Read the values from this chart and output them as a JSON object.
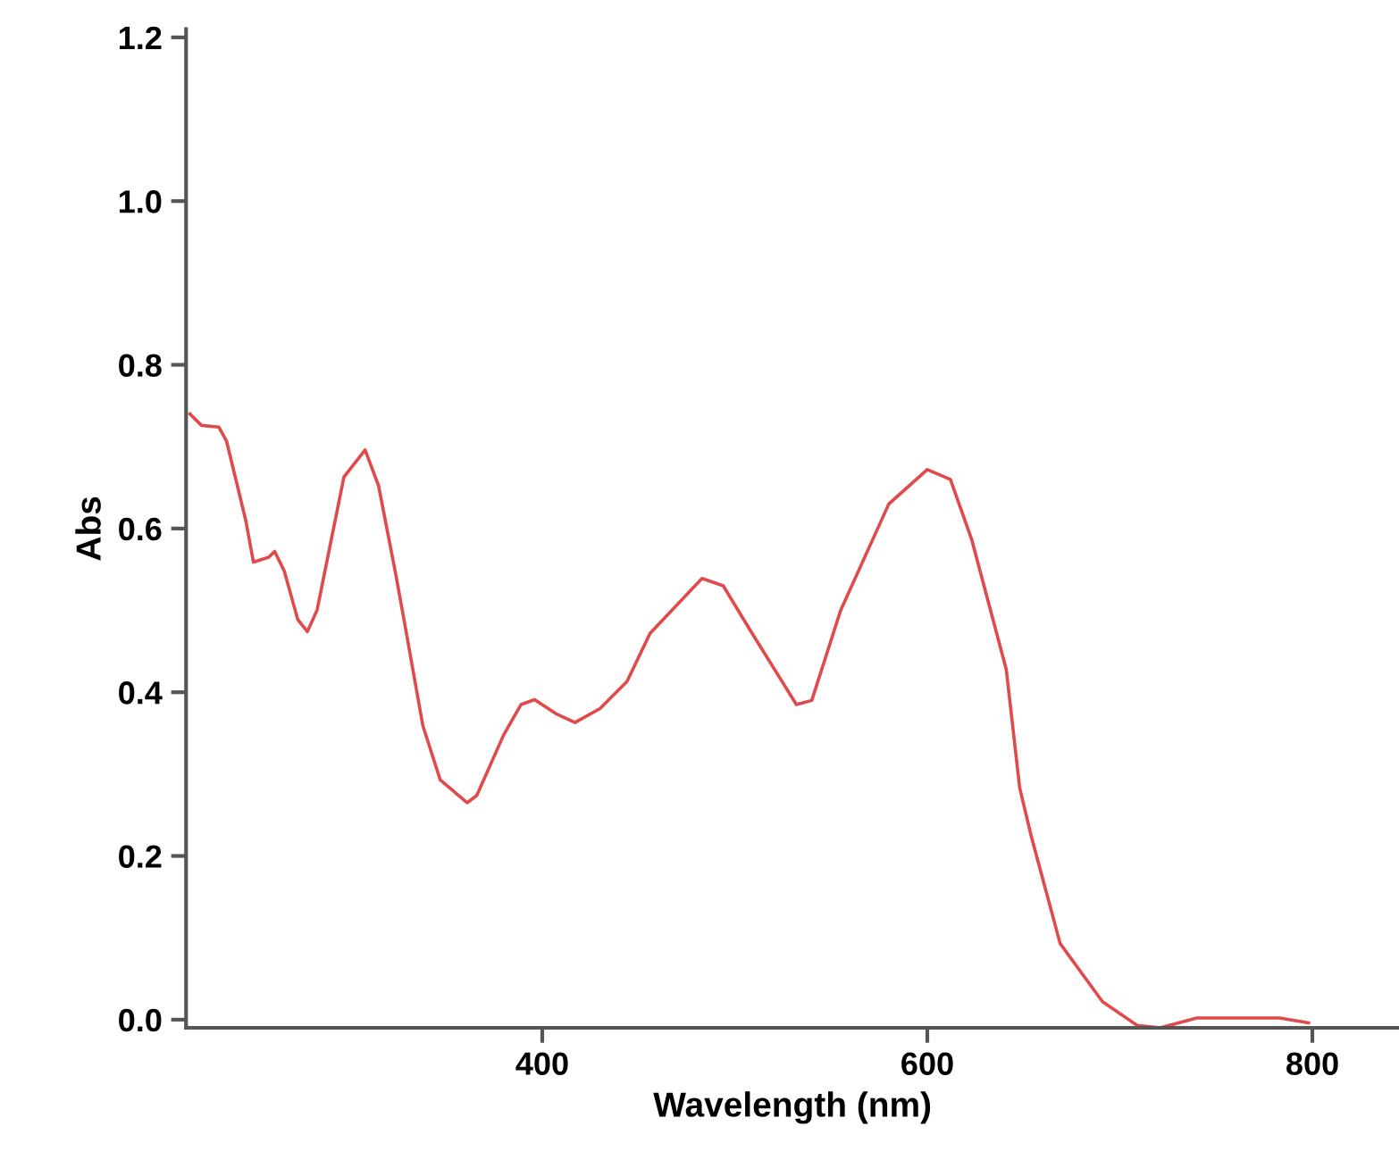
{
  "chart_data": {
    "type": "line",
    "xlabel": "Wavelength (nm)",
    "ylabel": "Abs",
    "xlim": [
      215,
      845
    ],
    "ylim": [
      -0.01,
      1.21
    ],
    "xticks": [
      400,
      600,
      800
    ],
    "yticks": [
      {
        "value": 0,
        "label": "0.0"
      },
      {
        "value": 0.2,
        "label": "0.2"
      },
      {
        "value": 0.4,
        "label": "0.4"
      },
      {
        "value": 0.6,
        "label": "0.6"
      },
      {
        "value": 0.8,
        "label": "0.8"
      },
      {
        "value": 1.0,
        "label": "1.0"
      },
      {
        "value": 1.2,
        "label": "1.2"
      }
    ],
    "grid": false,
    "legend": false,
    "marker": "none",
    "line_style": "solid",
    "series": [
      {
        "color": "#e04a4a",
        "x": [
          217,
          223,
          232,
          236,
          246,
          250,
          258,
          261,
          266,
          273,
          278,
          283,
          297,
          308,
          315,
          324,
          329,
          338,
          347,
          361,
          366,
          380,
          389,
          396,
          407,
          417,
          430,
          444,
          456,
          483,
          494,
          509,
          532,
          540,
          555,
          580,
          600,
          612,
          623,
          641,
          648,
          654,
          669,
          691,
          709,
          721,
          740,
          783,
          798
        ],
        "values": [
          0.74,
          0.726,
          0.724,
          0.707,
          0.61,
          0.559,
          0.565,
          0.572,
          0.548,
          0.489,
          0.474,
          0.5,
          0.663,
          0.696,
          0.652,
          0.543,
          0.478,
          0.359,
          0.293,
          0.265,
          0.274,
          0.348,
          0.385,
          0.391,
          0.374,
          0.363,
          0.38,
          0.413,
          0.472,
          0.539,
          0.53,
          0.472,
          0.385,
          0.39,
          0.5,
          0.63,
          0.672,
          0.66,
          0.587,
          0.428,
          0.283,
          0.224,
          0.093,
          0.022,
          -0.007,
          -0.01,
          0.002,
          0.002,
          -0.004
        ]
      }
    ]
  }
}
